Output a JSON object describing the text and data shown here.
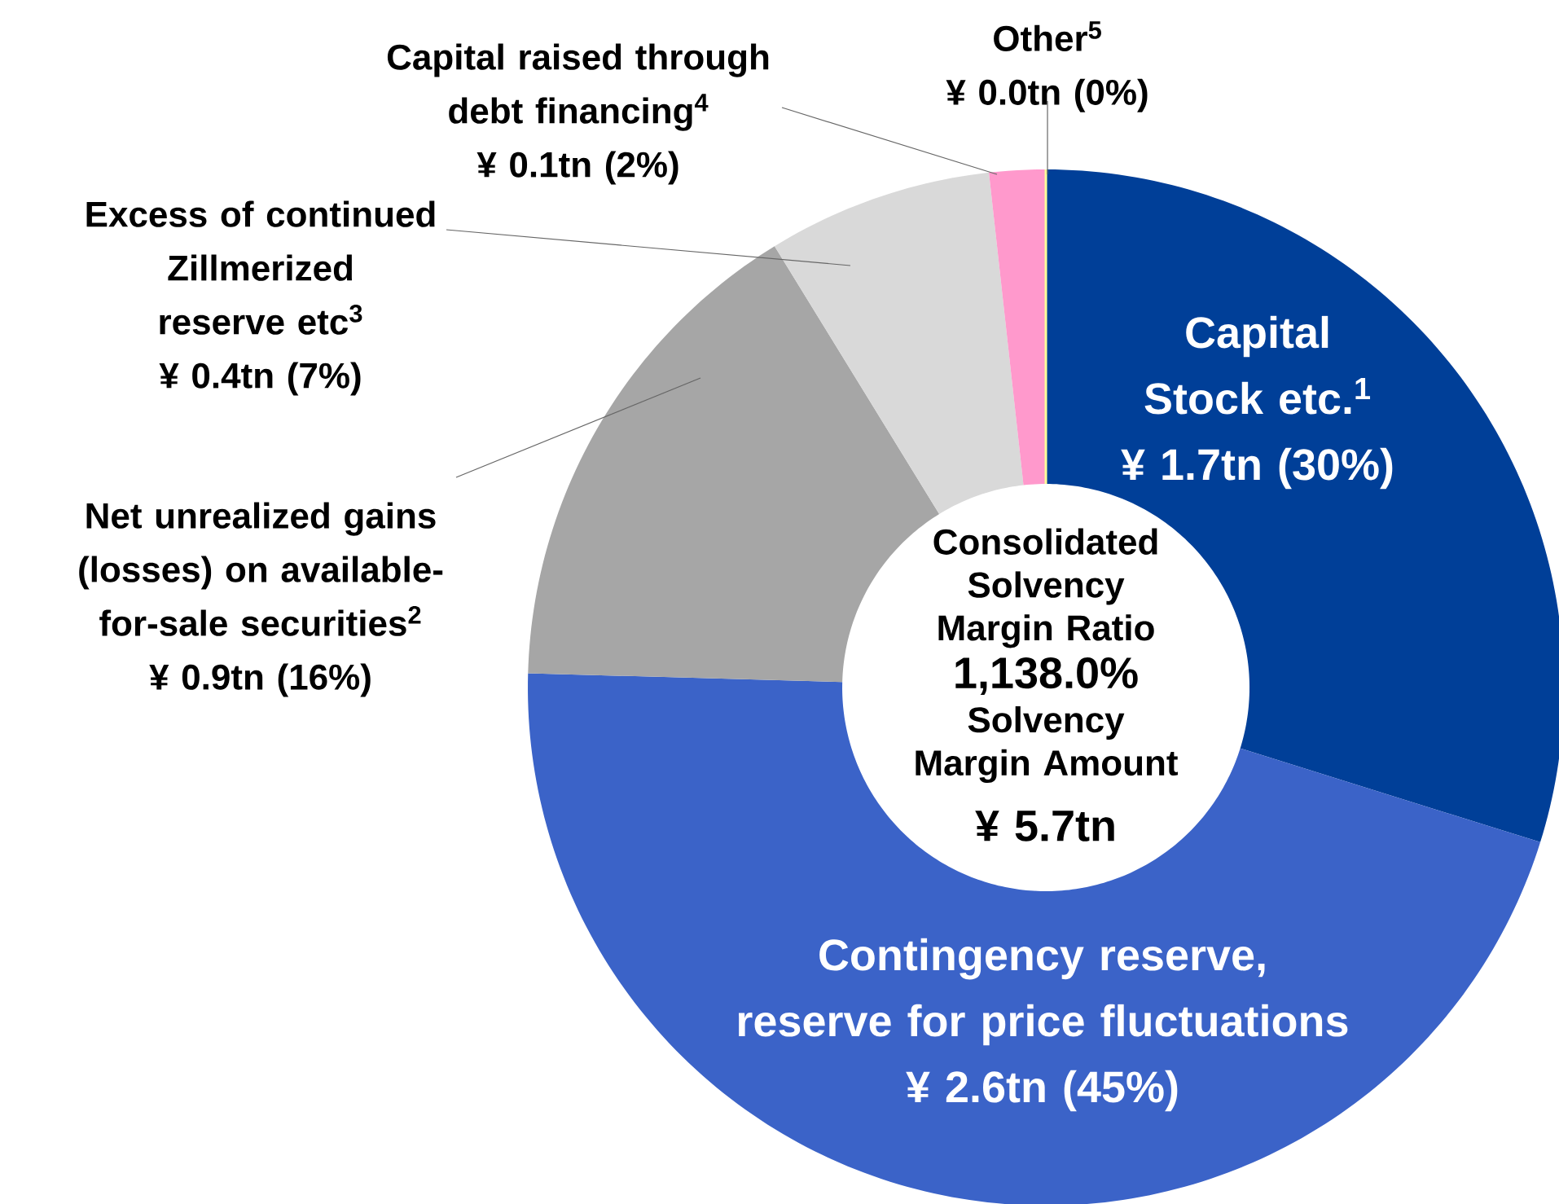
{
  "chart_data": {
    "type": "donut",
    "categories": [
      "Capital Stock etc.$^{1}$",
      "Contingency reserve, reserve for price fluctuations",
      "Net unrealized gains (losses) on available-for-sale securities$^{2}$",
      "Excess of continued Zillmerized reserve etc$^{3}$",
      "Capital raised through debt financing$^{4}$",
      "Other$^{5}$"
    ],
    "values": [
      1.7,
      2.6,
      0.9,
      0.4,
      0.1,
      0.0
    ],
    "value_labels": [
      "¥ 1.7tn (30%)",
      "¥ 2.6tn (45%)",
      "¥ 0.9tn (16%)",
      "¥ 0.4tn (7%)",
      "¥ 0.1tn (2%)",
      "¥ 0.0tn (0%)"
    ],
    "colors": [
      "#003f98",
      "#3b63c8",
      "#a6a6a6",
      "#d9d9d9",
      "#ff99cc",
      "#ffff99"
    ],
    "annotations": [
      "Consolidated Solvency Margin Ratio",
      "1,138.0%",
      "Solvency Margin Amount",
      "¥ 5.7tn"
    ]
  }
}
